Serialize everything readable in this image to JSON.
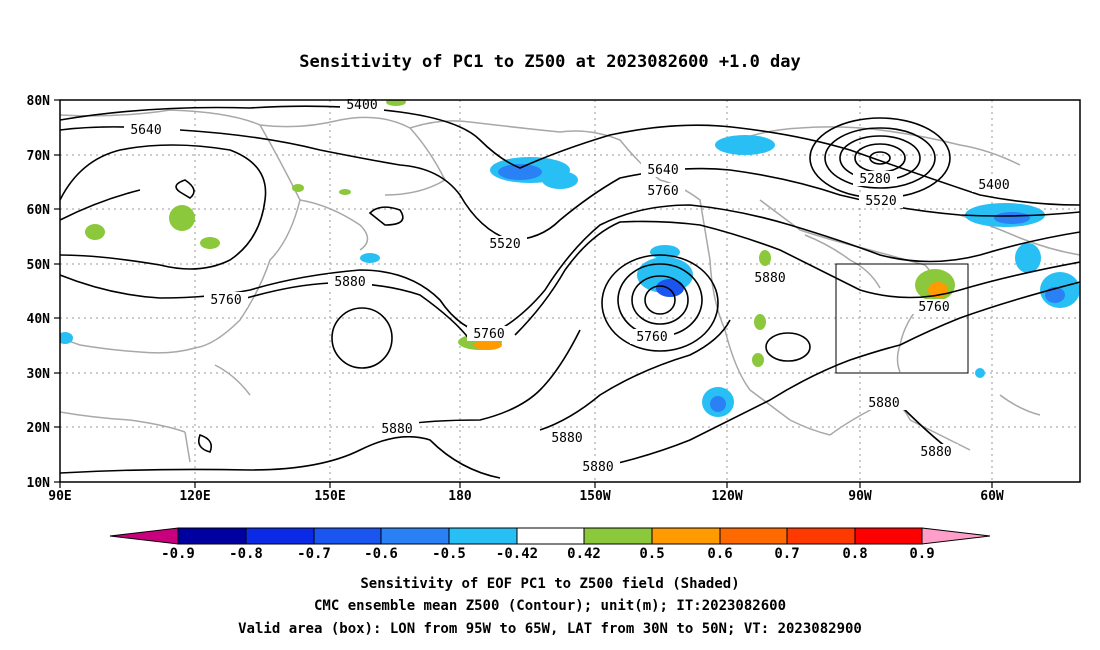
{
  "title": "Sensitivity of PC1 to Z500 at 2023082600 +1.0 day",
  "map": {
    "lon_ticks": [
      "90E",
      "120E",
      "150E",
      "180",
      "150W",
      "120W",
      "90W",
      "60W"
    ],
    "lat_ticks": [
      "80N",
      "70N",
      "60N",
      "50N",
      "40N",
      "30N",
      "20N",
      "10N"
    ],
    "contour_labels": [
      "5400",
      "5640",
      "5520",
      "5640",
      "5760",
      "5280",
      "5520",
      "5400",
      "5880",
      "5760",
      "5880",
      "5760",
      "5760",
      "5880",
      "5880",
      "5880",
      "5880",
      "5880",
      "5760"
    ],
    "colors": {
      "contour": "#000000",
      "coast": "#a8a8a8",
      "grid": "#9a9a9a"
    }
  },
  "colorbar": {
    "labels": [
      "-0.9",
      "-0.8",
      "-0.7",
      "-0.6",
      "-0.5",
      "-0.42",
      "0.42",
      "0.5",
      "0.6",
      "0.7",
      "0.8",
      "0.9"
    ],
    "colors": [
      "#c8007d",
      "#0000a0",
      "#0a2ae6",
      "#1a55f0",
      "#2a80f5",
      "#28bff5",
      "#ffffff",
      "#8cc83c",
      "#ff9a00",
      "#ff6a00",
      "#ff3a00",
      "#ff0000",
      "#ff9ec8"
    ]
  },
  "captions": {
    "line1": "Sensitivity of EOF PC1 to Z500 field (Shaded)",
    "line2": "CMC ensemble mean Z500 (Contour); unit(m); IT:2023082600",
    "line3": "Valid area (box): LON from 95W to 65W, LAT from 30N to 50N; VT: 2023082900"
  }
}
